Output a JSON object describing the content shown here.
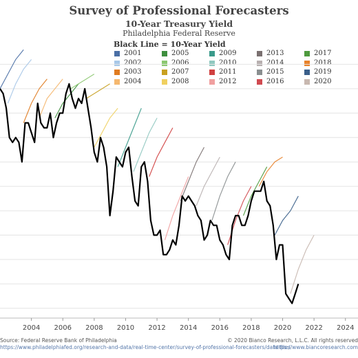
{
  "chart_data": {
    "type": "line",
    "title": "Survey of Professional Forecasters",
    "subtitle": "10-Year Treasury Yield",
    "subtitle2": "Philadelphia Federal Reserve",
    "legend_title": "Black Line = 10-Year Yield",
    "x_ticks": [
      "2004",
      "2006",
      "2008",
      "2010",
      "2012",
      "2014",
      "2016",
      "2018",
      "2020",
      "2022",
      "2024"
    ],
    "xlim": [
      2002,
      2024.8
    ],
    "ylim": [
      0.3,
      6.0
    ],
    "grid": "horizontal",
    "legend_placement": "top-center",
    "legend": [
      {
        "label": "2001",
        "color": "#4a6fa5"
      },
      {
        "label": "2002",
        "color": "#a8c8e8"
      },
      {
        "label": "2003",
        "color": "#e07b20"
      },
      {
        "label": "2004",
        "color": "#f5b870"
      },
      {
        "label": "2005",
        "color": "#3e8e3e"
      },
      {
        "label": "2006",
        "color": "#8cc870"
      },
      {
        "label": "2007",
        "color": "#c8a020"
      },
      {
        "label": "2008",
        "color": "#f0d060"
      },
      {
        "label": "2009",
        "color": "#3a9a8a"
      },
      {
        "label": "2010",
        "color": "#90c8c0"
      },
      {
        "label": "2011",
        "color": "#d04040"
      },
      {
        "label": "2012",
        "color": "#f0a0a0"
      },
      {
        "label": "2013",
        "color": "#7a7070"
      },
      {
        "label": "2014",
        "color": "#b8b0b0"
      },
      {
        "label": "2015",
        "color": "#8a8f90"
      },
      {
        "label": "2016",
        "color": "#d04a50"
      },
      {
        "label": "2017",
        "color": "#4e9a3e"
      },
      {
        "label": "2018",
        "color": "#e8822a"
      },
      {
        "label": "2019",
        "color": "#3a5f8a"
      },
      {
        "label": "2020",
        "color": "#c8b8b0"
      }
    ],
    "actual_yield": {
      "name": "10-Year Yield",
      "color": "#000000",
      "x": [
        2002.0,
        2002.2,
        2002.4,
        2002.6,
        2002.8,
        2003.0,
        2003.2,
        2003.4,
        2003.6,
        2003.8,
        2004.0,
        2004.2,
        2004.4,
        2004.6,
        2004.8,
        2005.0,
        2005.2,
        2005.4,
        2005.6,
        2005.8,
        2006.0,
        2006.2,
        2006.4,
        2006.6,
        2006.8,
        2007.0,
        2007.2,
        2007.4,
        2007.6,
        2007.8,
        2008.0,
        2008.2,
        2008.4,
        2008.6,
        2008.8,
        2009.0,
        2009.2,
        2009.4,
        2009.6,
        2009.8,
        2010.0,
        2010.2,
        2010.4,
        2010.6,
        2010.8,
        2011.0,
        2011.2,
        2011.4,
        2011.6,
        2011.8,
        2012.0,
        2012.2,
        2012.4,
        2012.6,
        2012.8,
        2013.0,
        2013.2,
        2013.4,
        2013.6,
        2013.8,
        2014.0,
        2014.2,
        2014.4,
        2014.6,
        2014.8,
        2015.0,
        2015.2,
        2015.4,
        2015.6,
        2015.8,
        2016.0,
        2016.2,
        2016.4,
        2016.6,
        2016.8,
        2017.0,
        2017.2,
        2017.4,
        2017.6,
        2017.8,
        2018.0,
        2018.2,
        2018.4,
        2018.6,
        2018.8,
        2019.0,
        2019.2,
        2019.4,
        2019.6,
        2019.8,
        2020.0,
        2020.2,
        2020.4,
        2020.6,
        2020.8,
        2021.0
      ],
      "y": [
        5.0,
        4.9,
        4.6,
        4.0,
        3.9,
        4.0,
        3.9,
        3.5,
        4.3,
        4.3,
        4.1,
        3.9,
        4.7,
        4.3,
        4.2,
        4.2,
        4.5,
        4.0,
        4.3,
        4.5,
        4.5,
        4.9,
        5.1,
        4.8,
        4.6,
        4.8,
        4.7,
        5.0,
        4.6,
        4.2,
        3.7,
        3.5,
        4.0,
        3.8,
        3.4,
        2.4,
        2.9,
        3.6,
        3.5,
        3.4,
        3.7,
        3.8,
        3.2,
        2.7,
        2.6,
        3.4,
        3.5,
        3.1,
        2.3,
        2.0,
        2.0,
        2.1,
        1.6,
        1.6,
        1.7,
        1.9,
        1.8,
        2.2,
        2.8,
        2.7,
        2.8,
        2.7,
        2.6,
        2.4,
        2.3,
        1.9,
        2.0,
        2.3,
        2.2,
        2.2,
        1.9,
        1.8,
        1.6,
        1.5,
        2.2,
        2.4,
        2.4,
        2.2,
        2.2,
        2.4,
        2.7,
        2.9,
        2.9,
        2.9,
        3.1,
        2.7,
        2.6,
        2.2,
        1.5,
        1.8,
        1.8,
        0.8,
        0.7,
        0.6,
        0.8,
        1.0
      ]
    },
    "forecasts": [
      {
        "name": "2001",
        "color": "#4a6fa5",
        "x": [
          2002.0,
          2002.5,
          2003.0,
          2003.5
        ],
        "y": [
          5.0,
          5.3,
          5.6,
          5.8
        ]
      },
      {
        "name": "2002",
        "color": "#a8c8e8",
        "x": [
          2002.5,
          2003.0,
          2003.5,
          2004.0
        ],
        "y": [
          4.7,
          5.1,
          5.4,
          5.6
        ]
      },
      {
        "name": "2003",
        "color": "#e07b20",
        "x": [
          2003.5,
          2004.0,
          2004.5,
          2005.0
        ],
        "y": [
          4.3,
          4.7,
          5.0,
          5.2
        ]
      },
      {
        "name": "2004",
        "color": "#f5b870",
        "x": [
          2004.5,
          2005.0,
          2005.5,
          2006.0
        ],
        "y": [
          4.4,
          4.8,
          5.0,
          5.2
        ]
      },
      {
        "name": "2005",
        "color": "#3e8e3e",
        "x": [
          2005.5,
          2006.0,
          2006.5,
          2007.0
        ],
        "y": [
          4.4,
          4.7,
          4.9,
          5.1
        ]
      },
      {
        "name": "2006",
        "color": "#8cc870",
        "x": [
          2006.5,
          2007.0,
          2007.5,
          2008.0
        ],
        "y": [
          5.0,
          5.1,
          5.2,
          5.3
        ]
      },
      {
        "name": "2007",
        "color": "#c8a020",
        "x": [
          2007.5,
          2008.0,
          2008.5,
          2009.0
        ],
        "y": [
          4.8,
          4.9,
          5.0,
          5.1
        ]
      },
      {
        "name": "2008",
        "color": "#f0d060",
        "x": [
          2008.0,
          2008.5,
          2009.0,
          2009.5
        ],
        "y": [
          3.8,
          4.1,
          4.4,
          4.6
        ]
      },
      {
        "name": "2009",
        "color": "#3a9a8a",
        "x": [
          2009.5,
          2010.0,
          2010.5,
          2011.0
        ],
        "y": [
          3.4,
          3.8,
          4.2,
          4.6
        ]
      },
      {
        "name": "2010",
        "color": "#90c8c0",
        "x": [
          2010.5,
          2011.0,
          2011.5,
          2012.0
        ],
        "y": [
          3.3,
          3.7,
          4.1,
          4.4
        ]
      },
      {
        "name": "2011",
        "color": "#d04040",
        "x": [
          2011.5,
          2012.0,
          2012.5,
          2013.0
        ],
        "y": [
          3.2,
          3.6,
          3.9,
          4.2
        ]
      },
      {
        "name": "2012",
        "color": "#f0a0a0",
        "x": [
          2012.5,
          2013.0,
          2013.5,
          2014.0
        ],
        "y": [
          1.9,
          2.4,
          2.8,
          3.2
        ]
      },
      {
        "name": "2013",
        "color": "#7a7070",
        "x": [
          2013.5,
          2014.0,
          2014.5,
          2015.0
        ],
        "y": [
          2.7,
          3.1,
          3.5,
          3.8
        ]
      },
      {
        "name": "2014",
        "color": "#b8b0b0",
        "x": [
          2014.5,
          2015.0,
          2015.5,
          2016.0
        ],
        "y": [
          2.6,
          3.0,
          3.3,
          3.6
        ]
      },
      {
        "name": "2015",
        "color": "#8a8f90",
        "x": [
          2015.5,
          2016.0,
          2016.5,
          2017.0
        ],
        "y": [
          2.3,
          2.8,
          3.2,
          3.5
        ]
      },
      {
        "name": "2016",
        "color": "#d04a50",
        "x": [
          2016.5,
          2017.0,
          2017.5,
          2018.0
        ],
        "y": [
          1.8,
          2.3,
          2.7,
          3.0
        ]
      },
      {
        "name": "2017",
        "color": "#4e9a3e",
        "x": [
          2017.5,
          2018.0,
          2018.5,
          2019.0
        ],
        "y": [
          2.4,
          2.8,
          3.1,
          3.4
        ]
      },
      {
        "name": "2018",
        "color": "#e8822a",
        "x": [
          2018.5,
          2019.0,
          2019.5,
          2020.0
        ],
        "y": [
          3.0,
          3.3,
          3.5,
          3.6
        ]
      },
      {
        "name": "2019",
        "color": "#3a5f8a",
        "x": [
          2019.5,
          2020.0,
          2020.5,
          2021.0
        ],
        "y": [
          2.0,
          2.3,
          2.5,
          2.8
        ]
      },
      {
        "name": "2020",
        "color": "#c8b8b0",
        "x": [
          2020.5,
          2021.0,
          2021.5,
          2022.0
        ],
        "y": [
          0.8,
          1.3,
          1.7,
          2.0
        ]
      }
    ],
    "source_left_1": "Source: Federal Reserve Bank of Philadelphia",
    "source_left_2": "https://www.philadelphiafed.org/research-and-data/real-time-center/survey-of-professional-forecasters/data-files",
    "source_right_1": "© 2020 Bianco Research, L.L.C. All rights reserved",
    "source_right_2": "https://www.biancoresearch.com"
  }
}
